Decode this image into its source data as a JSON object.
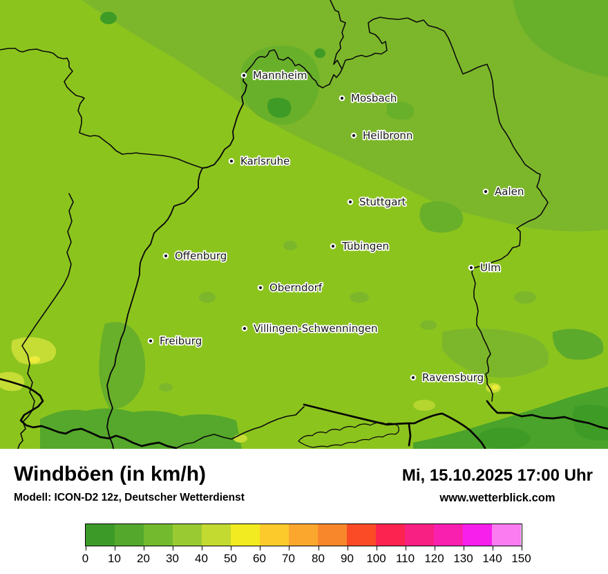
{
  "map": {
    "base_color": "#8CC41E",
    "cities": [
      {
        "name": "Mannheim"
      },
      {
        "name": "Mosbach"
      },
      {
        "name": "Heilbronn"
      },
      {
        "name": "Karlsruhe"
      },
      {
        "name": "Stuttgart"
      },
      {
        "name": "Aalen"
      },
      {
        "name": "Tübingen"
      },
      {
        "name": "Offenburg"
      },
      {
        "name": "Ulm"
      },
      {
        "name": "Oberndorf"
      },
      {
        "name": "Villingen-Schwenningen"
      },
      {
        "name": "Freiburg"
      },
      {
        "name": "Ravensburg"
      }
    ]
  },
  "footer": {
    "title": "Windböen (in km/h)",
    "model_info": "Modell: ICON-D2 12z, Deutscher Wetterdienst",
    "datetime": "Mi, 15.10.2025 17:00 Uhr",
    "website": "www.wetterblick.com"
  },
  "legend": {
    "unit": "km/h",
    "tick_labels": [
      "0",
      "10",
      "20",
      "30",
      "40",
      "50",
      "60",
      "70",
      "80",
      "90",
      "100",
      "110",
      "120",
      "130",
      "140",
      "150"
    ],
    "segment_colors": [
      "#3C9B28",
      "#54A92C",
      "#73BA2E",
      "#99CA31",
      "#C3DA30",
      "#F2EB21",
      "#FCCB2B",
      "#FBA72E",
      "#F8872C",
      "#FA4B26",
      "#FC2350",
      "#F92083",
      "#F920B0",
      "#F71FEC",
      "#FB7BF0"
    ]
  }
}
